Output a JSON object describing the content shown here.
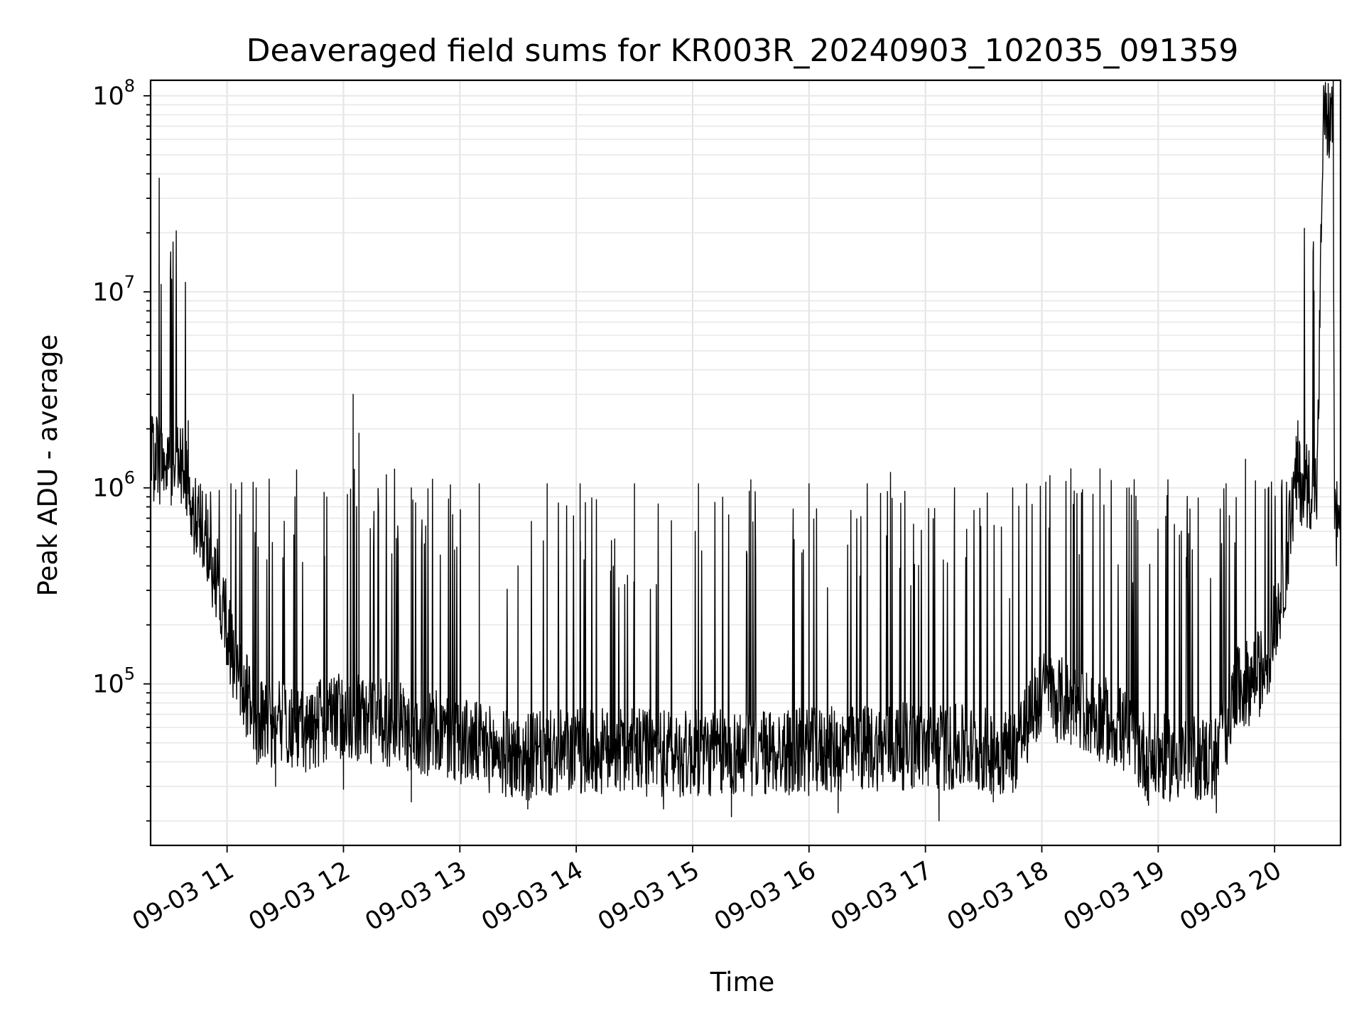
{
  "chart_data": {
    "type": "line",
    "title": "Deaveraged field sums for KR003R_20240903_102035_091359",
    "xlabel": "Time",
    "ylabel": "Peak ADU - average",
    "yscale": "log",
    "ylim": [
      15000,
      120000000
    ],
    "xlim": [
      "2024-09-03 10:20:35",
      "2024-09-03 20:34:00"
    ],
    "grid": true,
    "line_color": "#000000",
    "x_ticks": [
      {
        "time": "2024-09-03 11:00",
        "label": "09-03 11"
      },
      {
        "time": "2024-09-03 12:00",
        "label": "09-03 12"
      },
      {
        "time": "2024-09-03 13:00",
        "label": "09-03 13"
      },
      {
        "time": "2024-09-03 14:00",
        "label": "09-03 14"
      },
      {
        "time": "2024-09-03 15:00",
        "label": "09-03 15"
      },
      {
        "time": "2024-09-03 16:00",
        "label": "09-03 16"
      },
      {
        "time": "2024-09-03 17:00",
        "label": "09-03 17"
      },
      {
        "time": "2024-09-03 18:00",
        "label": "09-03 18"
      },
      {
        "time": "2024-09-03 19:00",
        "label": "09-03 19"
      },
      {
        "time": "2024-09-03 20:00",
        "label": "09-03 20"
      }
    ],
    "y_ticks": [
      {
        "value": 100000,
        "base": "10",
        "exp": "5"
      },
      {
        "value": 1000000,
        "base": "10",
        "exp": "6"
      },
      {
        "value": 10000000,
        "base": "10",
        "exp": "7"
      },
      {
        "value": 100000000,
        "base": "10",
        "exp": "8"
      }
    ],
    "series": [
      {
        "baseline": [
          {
            "time": "2024-09-03 10:20:35",
            "value": 1400000
          },
          {
            "time": "2024-09-03 10:37",
            "value": 1300000
          },
          {
            "time": "2024-09-03 10:42",
            "value": 750000
          },
          {
            "time": "2024-09-03 10:50",
            "value": 500000
          },
          {
            "time": "2024-09-03 10:57",
            "value": 280000
          },
          {
            "time": "2024-09-03 11:05",
            "value": 110000
          },
          {
            "time": "2024-09-03 11:15",
            "value": 65000
          },
          {
            "time": "2024-09-03 11:40",
            "value": 58000
          },
          {
            "time": "2024-09-03 12:00",
            "value": 70000
          },
          {
            "time": "2024-09-03 12:30",
            "value": 60000
          },
          {
            "time": "2024-09-03 13:00",
            "value": 52000
          },
          {
            "time": "2024-09-03 13:30",
            "value": 42000
          },
          {
            "time": "2024-09-03 14:00",
            "value": 45000
          },
          {
            "time": "2024-09-03 15:00",
            "value": 44000
          },
          {
            "time": "2024-09-03 16:00",
            "value": 45000
          },
          {
            "time": "2024-09-03 16:40",
            "value": 48000
          },
          {
            "time": "2024-09-03 17:00",
            "value": 48000
          },
          {
            "time": "2024-09-03 17:45",
            "value": 45000
          },
          {
            "time": "2024-09-03 18:00",
            "value": 90000
          },
          {
            "time": "2024-09-03 18:20",
            "value": 75000
          },
          {
            "time": "2024-09-03 18:40",
            "value": 60000
          },
          {
            "time": "2024-09-03 18:55",
            "value": 42000
          },
          {
            "time": "2024-09-03 19:30",
            "value": 42000
          },
          {
            "time": "2024-09-03 19:40",
            "value": 90000
          },
          {
            "time": "2024-09-03 19:55",
            "value": 120000
          },
          {
            "time": "2024-09-03 20:05",
            "value": 350000
          },
          {
            "time": "2024-09-03 20:11",
            "value": 1100000
          },
          {
            "time": "2024-09-03 20:22",
            "value": 1000000
          },
          {
            "time": "2024-09-03 20:25",
            "value": 75000000
          },
          {
            "time": "2024-09-03 20:30",
            "value": 74000000
          },
          {
            "time": "2024-09-03 20:31",
            "value": 600000
          }
        ],
        "peaks": [
          {
            "time": "2024-09-03 10:25",
            "value": 38000000
          },
          {
            "time": "2024-09-03 10:40",
            "value": 2200000
          },
          {
            "time": "2024-09-03 11:02",
            "value": 1050000
          },
          {
            "time": "2024-09-03 11:15",
            "value": 1000000
          },
          {
            "time": "2024-09-03 11:35",
            "value": 900000
          },
          {
            "time": "2024-09-03 11:50",
            "value": 950000
          },
          {
            "time": "2024-09-03 12:05",
            "value": 3000000
          },
          {
            "time": "2024-09-03 12:08",
            "value": 1900000
          },
          {
            "time": "2024-09-03 12:35",
            "value": 1000000
          },
          {
            "time": "2024-09-03 13:10",
            "value": 1050000
          },
          {
            "time": "2024-09-03 13:30",
            "value": 400000
          },
          {
            "time": "2024-09-03 13:45",
            "value": 1050000
          },
          {
            "time": "2024-09-03 14:02",
            "value": 1050000
          },
          {
            "time": "2024-09-03 14:30",
            "value": 1050000
          },
          {
            "time": "2024-09-03 15:03",
            "value": 1050000
          },
          {
            "time": "2024-09-03 15:30",
            "value": 1100000
          },
          {
            "time": "2024-09-03 16:00",
            "value": 1050000
          },
          {
            "time": "2024-09-03 16:30",
            "value": 1050000
          },
          {
            "time": "2024-09-03 16:42",
            "value": 1200000
          },
          {
            "time": "2024-09-03 17:15",
            "value": 1000000
          },
          {
            "time": "2024-09-03 17:45",
            "value": 1000000
          },
          {
            "time": "2024-09-03 18:15",
            "value": 1250000
          },
          {
            "time": "2024-09-03 18:30",
            "value": 1250000
          },
          {
            "time": "2024-09-03 18:45",
            "value": 1000000
          },
          {
            "time": "2024-09-03 19:05",
            "value": 1100000
          },
          {
            "time": "2024-09-03 19:35",
            "value": 1050000
          },
          {
            "time": "2024-09-03 19:45",
            "value": 1400000
          },
          {
            "time": "2024-09-03 20:12",
            "value": 2200000
          },
          {
            "time": "2024-09-03 20:20",
            "value": 18000000
          },
          {
            "time": "2024-09-03 20:27",
            "value": 80000000
          }
        ],
        "dips": [
          {
            "time": "2024-09-03 11:25",
            "value": 30000
          },
          {
            "time": "2024-09-03 12:00",
            "value": 29000
          },
          {
            "time": "2024-09-03 12:35",
            "value": 25000
          },
          {
            "time": "2024-09-03 13:35",
            "value": 23000
          },
          {
            "time": "2024-09-03 14:45",
            "value": 23000
          },
          {
            "time": "2024-09-03 15:20",
            "value": 21000
          },
          {
            "time": "2024-09-03 16:15",
            "value": 22000
          },
          {
            "time": "2024-09-03 17:07",
            "value": 20000
          },
          {
            "time": "2024-09-03 17:35",
            "value": 25000
          },
          {
            "time": "2024-09-03 18:55",
            "value": 24000
          },
          {
            "time": "2024-09-03 19:30",
            "value": 22000
          }
        ]
      }
    ]
  }
}
